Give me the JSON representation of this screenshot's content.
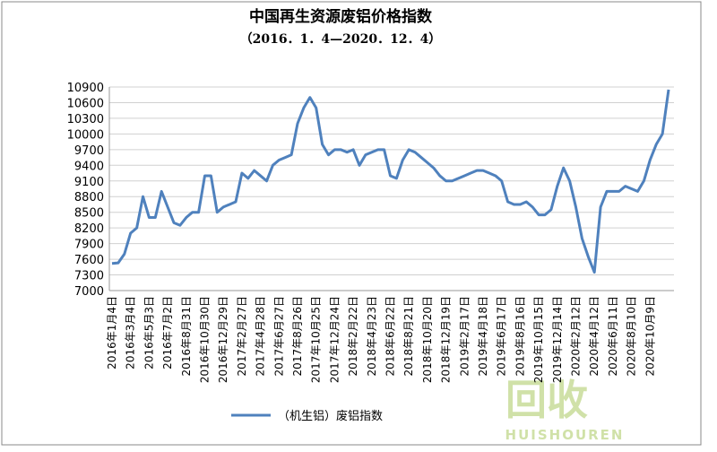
{
  "chart_data": {
    "type": "line",
    "title": "中国再生资源废铝价格指数",
    "subtitle": "（2016．1．4—2020．12．4）",
    "categories": [
      "2016年1月4日",
      null,
      null,
      "2016年3月4日",
      null,
      null,
      "2016年5月3日",
      null,
      null,
      "2016年7月2日",
      null,
      null,
      "2016年8月31日",
      null,
      null,
      "2016年10月30日",
      null,
      null,
      "2016年12月29日",
      null,
      null,
      "2017年2月27日",
      null,
      null,
      "2017年4月28日",
      null,
      null,
      "2017年6月27日",
      null,
      null,
      "2017年8月26日",
      null,
      null,
      "2017年10月25日",
      null,
      null,
      "2017年12月24日",
      null,
      null,
      "2018年2月22日",
      null,
      null,
      "2018年4月23日",
      null,
      null,
      "2018年6月22日",
      null,
      null,
      "2018年8月21日",
      null,
      null,
      "2018年10月20日",
      null,
      null,
      "2018年12月19日",
      null,
      null,
      "2019年2月17日",
      null,
      null,
      "2019年4月18日",
      null,
      null,
      "2019年6月17日",
      null,
      null,
      "2019年8月16日",
      null,
      null,
      "2019年10月15日",
      null,
      null,
      "2019年12月14日",
      null,
      null,
      "2020年2月12日",
      null,
      null,
      "2020年4月12日",
      null,
      null,
      "2020年6月11日",
      null,
      null,
      "2020年8月10日",
      null,
      null,
      "2020年10月9日",
      null,
      null,
      null
    ],
    "series": [
      {
        "name": "（机生铝）废铝指数",
        "color": "#4f81bd",
        "values": [
          7520,
          7530,
          7700,
          8100,
          8200,
          8800,
          8400,
          8400,
          8900,
          8600,
          8300,
          8250,
          8400,
          8500,
          8500,
          9200,
          9200,
          8500,
          8600,
          8650,
          8700,
          9250,
          9150,
          9300,
          9200,
          9100,
          9400,
          9500,
          9550,
          9600,
          10200,
          10500,
          10700,
          10500,
          9800,
          9600,
          9700,
          9700,
          9650,
          9700,
          9400,
          9600,
          9650,
          9700,
          9700,
          9200,
          9150,
          9500,
          9700,
          9650,
          9550,
          9450,
          9350,
          9200,
          9100,
          9100,
          9150,
          9200,
          9250,
          9300,
          9300,
          9250,
          9200,
          9100,
          8700,
          8650,
          8650,
          8700,
          8600,
          8450,
          8450,
          8550,
          9000,
          9350,
          9100,
          8600,
          8000,
          7650,
          7350,
          8600,
          8900,
          8900,
          8900,
          9000,
          8950,
          8900,
          9100,
          9500,
          9800,
          10000,
          10850
        ]
      }
    ],
    "ylim": [
      7000,
      10900
    ],
    "yticks": [
      7000,
      7300,
      7600,
      7900,
      8200,
      8500,
      8800,
      9100,
      9400,
      9700,
      10000,
      10300,
      10600,
      10900
    ],
    "grid": true,
    "legend": "bottom",
    "watermark": {
      "text": "回收",
      "subtext": "HUISHOUREN"
    }
  }
}
